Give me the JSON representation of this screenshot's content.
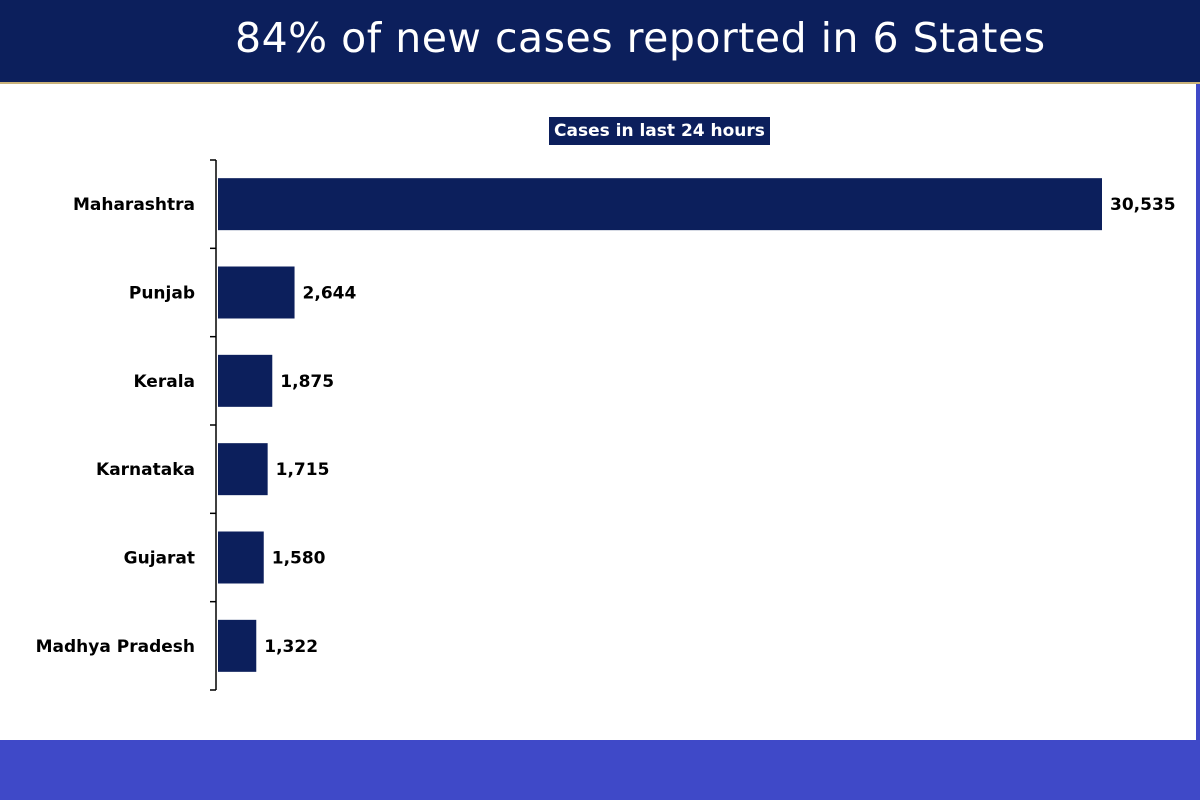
{
  "header": {
    "title": "84% of new cases reported in 6 States"
  },
  "colors": {
    "header_bg": "#0c1f5c",
    "bar": "#0c1f5c",
    "footer_bg": "#3f49c8",
    "accent_line": "#c9b27a"
  },
  "chart_data": {
    "type": "bar",
    "orientation": "horizontal",
    "title": "Cases in last 24 hours",
    "categories": [
      "Maharashtra",
      "Punjab",
      "Kerala",
      "Karnataka",
      "Gujarat",
      "Madhya Pradesh"
    ],
    "values": [
      30535,
      2644,
      1875,
      1715,
      1580,
      1322
    ],
    "value_labels": [
      "30,535",
      "2,644",
      "1,875",
      "1,715",
      "1,580",
      "1,322"
    ],
    "xlim": [
      0,
      30535
    ],
    "grid": false,
    "legend": "none"
  }
}
